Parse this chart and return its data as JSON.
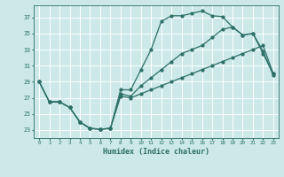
{
  "xlabel": "Humidex (Indice chaleur)",
  "xlim": [
    -0.5,
    23.5
  ],
  "ylim": [
    22.0,
    38.5
  ],
  "xticks": [
    0,
    1,
    2,
    3,
    4,
    5,
    6,
    7,
    8,
    9,
    10,
    11,
    12,
    13,
    14,
    15,
    16,
    17,
    18,
    19,
    20,
    21,
    22,
    23
  ],
  "yticks": [
    23,
    25,
    27,
    29,
    31,
    33,
    35,
    37
  ],
  "bg_color": "#cce8e8",
  "grid_color": "#ffffff",
  "line_color": "#2d7068",
  "line1_y": [
    29.0,
    26.5,
    26.5,
    25.8,
    24.0,
    23.2,
    23.1,
    23.2,
    28.0,
    28.0,
    30.5,
    33.0,
    36.5,
    37.2,
    37.2,
    37.5,
    37.8,
    37.2,
    37.1,
    35.8,
    34.8,
    35.0,
    32.8,
    29.8
  ],
  "line2_y": [
    29.0,
    26.5,
    26.5,
    25.8,
    24.0,
    23.2,
    23.1,
    23.2,
    27.5,
    27.2,
    28.5,
    29.5,
    30.5,
    31.5,
    32.5,
    33.0,
    33.5,
    34.5,
    35.5,
    35.8,
    34.8,
    35.0,
    32.5,
    30.0
  ],
  "line3_y": [
    29.0,
    26.5,
    26.5,
    25.8,
    24.0,
    23.2,
    23.1,
    23.2,
    27.2,
    27.0,
    27.5,
    28.0,
    28.5,
    29.0,
    29.5,
    30.0,
    30.5,
    31.0,
    31.5,
    32.0,
    32.5,
    33.0,
    33.5,
    30.0
  ],
  "markersize": 2.0,
  "linewidth": 0.9
}
